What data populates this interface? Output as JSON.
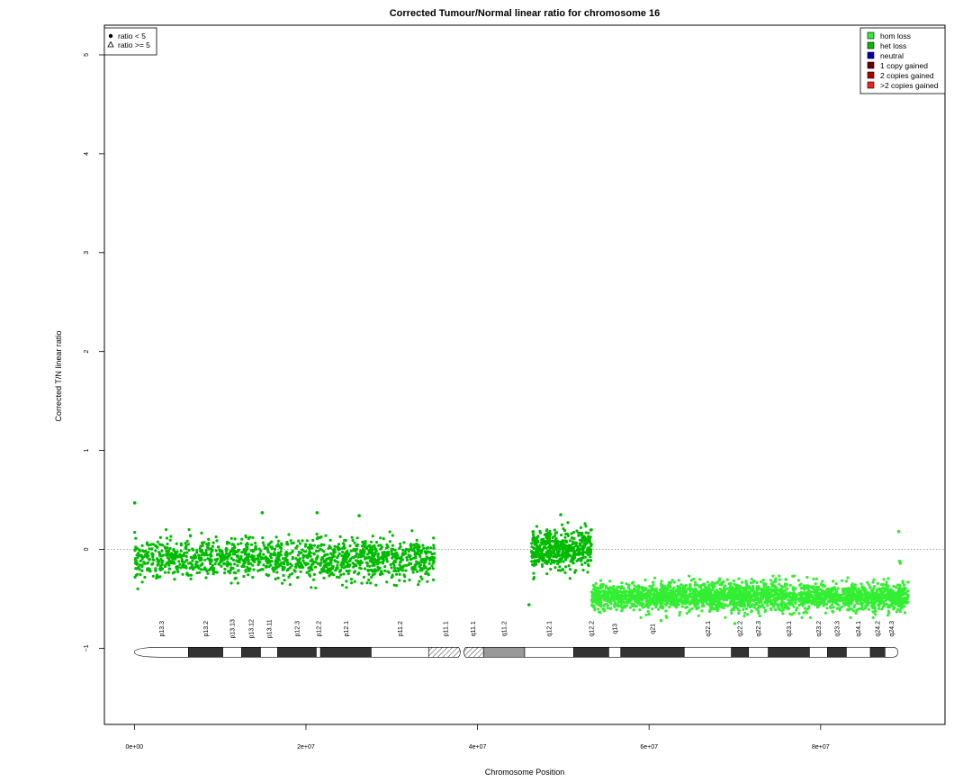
{
  "chart_data": {
    "type": "scatter",
    "title": "Corrected Tumour/Normal linear ratio for chromosome  16",
    "xlabel": "Chromosome Position",
    "ylabel": "Corrected T/N linear ratio",
    "xlim": [
      -3500000,
      94500000
    ],
    "ylim": [
      -1.77,
      5.3
    ],
    "x_ticks": [
      {
        "value": 0,
        "label": "0e+00"
      },
      {
        "value": 20000000,
        "label": "2e+07"
      },
      {
        "value": 40000000,
        "label": "4e+07"
      },
      {
        "value": 60000000,
        "label": "6e+07"
      },
      {
        "value": 80000000,
        "label": "8e+07"
      }
    ],
    "y_ticks": [
      {
        "value": -1,
        "label": "−1"
      },
      {
        "value": 0,
        "label": "0"
      },
      {
        "value": 1,
        "label": "1"
      },
      {
        "value": 2,
        "label": "2"
      },
      {
        "value": 3,
        "label": "3"
      },
      {
        "value": 4,
        "label": "4"
      },
      {
        "value": 5,
        "label": "5"
      }
    ],
    "reference_line": {
      "y": 0,
      "style": "dotted",
      "color": "#888888"
    },
    "marker_legend": {
      "placement": "top-left",
      "entries": [
        {
          "symbol": "dot",
          "label": "ratio < 5"
        },
        {
          "symbol": "triangle",
          "label": "ratio >= 5"
        }
      ]
    },
    "legend": {
      "placement": "top-right",
      "entries": [
        {
          "label": "hom loss",
          "color": "#33ee33"
        },
        {
          "label": "het loss",
          "color": "#00bb00"
        },
        {
          "label": "neutral",
          "color": "#0000aa"
        },
        {
          "label": "1 copy gained",
          "color": "#660000"
        },
        {
          "label": "2 copies gained",
          "color": "#aa0000"
        },
        {
          "label": ">2 copies gained",
          "color": "#ee2222"
        }
      ]
    },
    "segments": [
      {
        "state": "het loss",
        "color": "#00bb00",
        "x_start": 0,
        "x_end": 35000000,
        "mean": -0.1,
        "sd": 0.1,
        "count": 1400
      },
      {
        "state": "het loss",
        "color": "#00bb00",
        "x_start": 46300000,
        "x_end": 53300000,
        "mean": 0.0,
        "sd": 0.1,
        "count": 500
      },
      {
        "state": "hom loss",
        "color": "#33ee33",
        "x_start": 53300000,
        "x_end": 90200000,
        "mean": -0.48,
        "sd": 0.07,
        "count": 2600
      }
    ],
    "highlighted_points": [
      {
        "x": 30000,
        "y": 0.47,
        "state": "het loss"
      },
      {
        "x": 14900000,
        "y": 0.37,
        "state": "het loss"
      },
      {
        "x": 21300000,
        "y": 0.37,
        "state": "het loss"
      },
      {
        "x": 26200000,
        "y": 0.34,
        "state": "het loss"
      },
      {
        "x": 46000000,
        "y": -0.56,
        "state": "het loss"
      },
      {
        "x": 49700000,
        "y": 0.35,
        "state": "het loss"
      },
      {
        "x": 61400000,
        "y": -0.72,
        "state": "hom loss"
      },
      {
        "x": 70000000,
        "y": -0.75,
        "state": "hom loss"
      },
      {
        "x": 89100000,
        "y": 0.18,
        "state": "hom loss"
      },
      {
        "x": 89200000,
        "y": -0.12,
        "state": "hom loss"
      },
      {
        "x": 89300000,
        "y": -0.14,
        "state": "hom loss"
      }
    ],
    "ideogram": {
      "y": -1.04,
      "bands": [
        {
          "name": "p13.3",
          "start": 0,
          "end": 6300000,
          "stain": "gneg"
        },
        {
          "name": "p13.2",
          "start": 6300000,
          "end": 10300000,
          "stain": "gpos"
        },
        {
          "name": "p13.13",
          "start": 10300000,
          "end": 12500000,
          "stain": "gneg"
        },
        {
          "name": "p13.12",
          "start": 12500000,
          "end": 14700000,
          "stain": "gpos"
        },
        {
          "name": "p13.11",
          "start": 14700000,
          "end": 16700000,
          "stain": "gneg"
        },
        {
          "name": "p12.3",
          "start": 16700000,
          "end": 21200000,
          "stain": "gpos"
        },
        {
          "name": "p12.2",
          "start": 21200000,
          "end": 21700000,
          "stain": "gneg"
        },
        {
          "name": "p12.1",
          "start": 21700000,
          "end": 27600000,
          "stain": "gpos"
        },
        {
          "name": "p11.2",
          "start": 27600000,
          "end": 34300000,
          "stain": "gneg"
        },
        {
          "name": "p11.1",
          "start": 34300000,
          "end": 38200000,
          "stain": "acen"
        },
        {
          "name": "q11.1",
          "start": 38200000,
          "end": 40700000,
          "stain": "acen"
        },
        {
          "name": "q11.2",
          "start": 40700000,
          "end": 45500000,
          "stain": "gvar"
        },
        {
          "name": "q12.1",
          "start": 45500000,
          "end": 51200000,
          "stain": "gneg"
        },
        {
          "name": "q12.2",
          "start": 51200000,
          "end": 55300000,
          "stain": "gpos"
        },
        {
          "name": "q13",
          "start": 55300000,
          "end": 56700000,
          "stain": "gneg"
        },
        {
          "name": "q21",
          "start": 56700000,
          "end": 64100000,
          "stain": "gpos"
        },
        {
          "name": "q22.1",
          "start": 64100000,
          "end": 69600000,
          "stain": "gneg"
        },
        {
          "name": "q22.2",
          "start": 69600000,
          "end": 71600000,
          "stain": "gpos"
        },
        {
          "name": "q22.3",
          "start": 71600000,
          "end": 73900000,
          "stain": "gneg"
        },
        {
          "name": "q23.1",
          "start": 73900000,
          "end": 78700000,
          "stain": "gpos"
        },
        {
          "name": "q23.2",
          "start": 78700000,
          "end": 80800000,
          "stain": "gneg"
        },
        {
          "name": "q23.3",
          "start": 80800000,
          "end": 83000000,
          "stain": "gpos"
        },
        {
          "name": "q24.1",
          "start": 83000000,
          "end": 85800000,
          "stain": "gneg"
        },
        {
          "name": "q24.2",
          "start": 85800000,
          "end": 87500000,
          "stain": "gpos"
        },
        {
          "name": "q24.3",
          "start": 87500000,
          "end": 89000000,
          "stain": "gneg"
        }
      ]
    }
  }
}
